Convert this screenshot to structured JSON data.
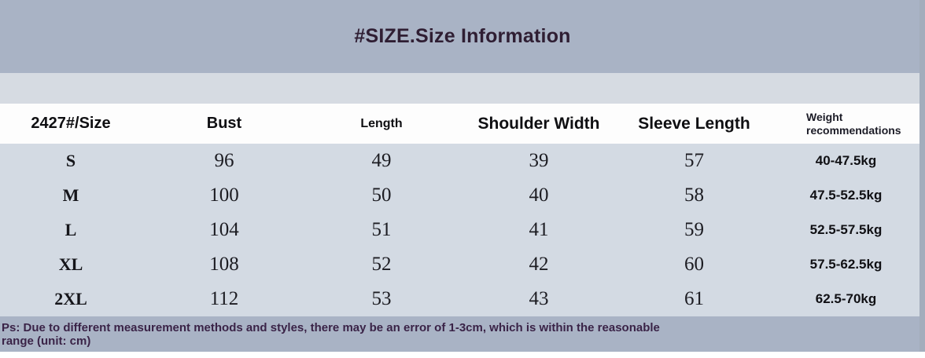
{
  "title": "#SIZE.Size Information",
  "table": {
    "columns": [
      {
        "label": "2427#/Size"
      },
      {
        "label": "Bust"
      },
      {
        "label": "Length"
      },
      {
        "label": "Shoulder Width"
      },
      {
        "label": "Sleeve Length"
      },
      {
        "label": "Weight recommendations"
      }
    ],
    "rows": [
      {
        "size": "S",
        "bust": "96",
        "length": "49",
        "shoulder_width": "39",
        "sleeve_length": "57",
        "weight": "40-47.5kg"
      },
      {
        "size": "M",
        "bust": "100",
        "length": "50",
        "shoulder_width": "40",
        "sleeve_length": "58",
        "weight": "47.5-52.5kg"
      },
      {
        "size": "L",
        "bust": "104",
        "length": "51",
        "shoulder_width": "41",
        "sleeve_length": "59",
        "weight": "52.5-57.5kg"
      },
      {
        "size": "XL",
        "bust": "108",
        "length": "52",
        "shoulder_width": "42",
        "sleeve_length": "60",
        "weight": "57.5-62.5kg"
      },
      {
        "size": "2XL",
        "bust": "112",
        "length": "53",
        "shoulder_width": "43",
        "sleeve_length": "61",
        "weight": "62.5-70kg"
      }
    ]
  },
  "footer_note": "Ps: Due to different measurement methods and styles, there may be an error of 1-3cm, which is within the reasonable range (unit: cm)",
  "unit": "cm",
  "colors": {
    "banner_background": "#a9b3c5",
    "spacer_background": "#d6dbe2",
    "header_row_background": "#fdfdfd",
    "table_body_background": "#d3dae3",
    "footer_background": "#a9b3c5",
    "title_text": "#2f1e33",
    "footer_text": "#3a2347",
    "table_text": "#1c1c22"
  }
}
